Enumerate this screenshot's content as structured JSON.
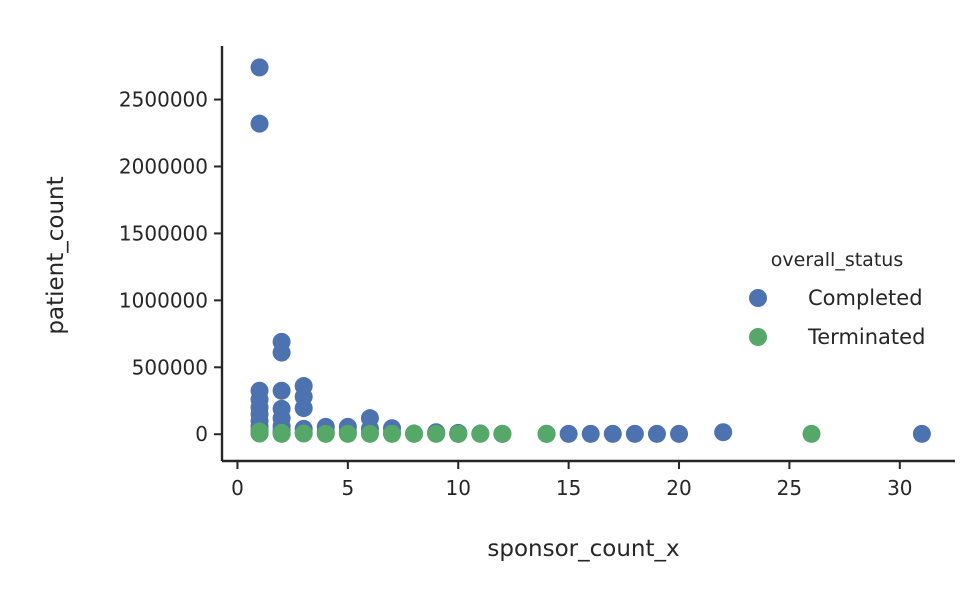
{
  "chart_data": {
    "type": "scatter",
    "xlabel": "sponsor_count_x",
    "ylabel": "patient_count",
    "xlim": [
      -0.7,
      32.5
    ],
    "ylim": [
      -200000,
      2900000
    ],
    "xticks": [
      0,
      5,
      10,
      15,
      20,
      25,
      30
    ],
    "yticks": [
      0,
      500000,
      1000000,
      1500000,
      2000000,
      2500000
    ],
    "ytick_labels": [
      "0",
      "500000",
      "1000000",
      "1500000",
      "2000000",
      "2500000"
    ],
    "grid": false,
    "legend": {
      "title": "overall_status",
      "placement": "center-right"
    },
    "series": [
      {
        "name": "Completed",
        "color": "#4c72b0",
        "points": [
          [
            1,
            2740000
          ],
          [
            1,
            2320000
          ],
          [
            1,
            325000
          ],
          [
            1,
            260000
          ],
          [
            1,
            200000
          ],
          [
            1,
            150000
          ],
          [
            1,
            100000
          ],
          [
            1,
            60000
          ],
          [
            1,
            30000
          ],
          [
            1,
            8000
          ],
          [
            2,
            690000
          ],
          [
            2,
            610000
          ],
          [
            2,
            325000
          ],
          [
            2,
            190000
          ],
          [
            2,
            120000
          ],
          [
            2,
            60000
          ],
          [
            2,
            30000
          ],
          [
            2,
            8000
          ],
          [
            3,
            360000
          ],
          [
            3,
            280000
          ],
          [
            3,
            195000
          ],
          [
            3,
            40000
          ],
          [
            3,
            10000
          ],
          [
            4,
            55000
          ],
          [
            4,
            15000
          ],
          [
            5,
            55000
          ],
          [
            5,
            15000
          ],
          [
            6,
            120000
          ],
          [
            6,
            40000
          ],
          [
            6,
            10000
          ],
          [
            7,
            45000
          ],
          [
            7,
            10000
          ],
          [
            8,
            5000
          ],
          [
            9,
            15000
          ],
          [
            9,
            5000
          ],
          [
            10,
            10000
          ],
          [
            10,
            3000
          ],
          [
            11,
            5000
          ],
          [
            12,
            3000
          ],
          [
            14,
            3000
          ],
          [
            15,
            3000
          ],
          [
            16,
            3000
          ],
          [
            17,
            3000
          ],
          [
            18,
            3000
          ],
          [
            19,
            3000
          ],
          [
            20,
            3000
          ],
          [
            22,
            15000
          ],
          [
            31,
            3000
          ]
        ]
      },
      {
        "name": "Terminated",
        "color": "#55a868",
        "points": [
          [
            1,
            20000
          ],
          [
            1,
            5000
          ],
          [
            2,
            10000
          ],
          [
            2,
            3000
          ],
          [
            3,
            5000
          ],
          [
            4,
            3000
          ],
          [
            5,
            3000
          ],
          [
            6,
            3000
          ],
          [
            7,
            3000
          ],
          [
            8,
            3000
          ],
          [
            9,
            3000
          ],
          [
            10,
            3000
          ],
          [
            11,
            3000
          ],
          [
            12,
            3000
          ],
          [
            14,
            3000
          ],
          [
            26,
            3000
          ]
        ]
      }
    ]
  }
}
